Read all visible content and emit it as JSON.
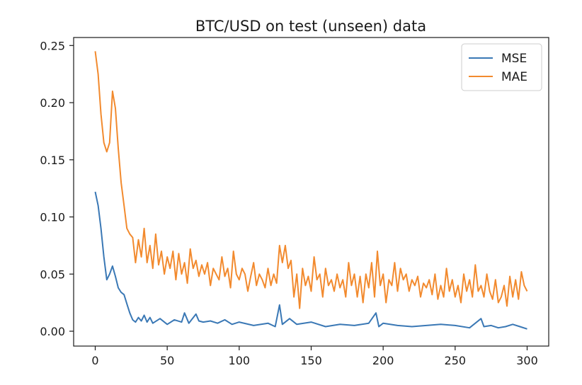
{
  "chart_data": {
    "type": "line",
    "title": "BTC/USD on test (unseen) data",
    "xlabel": "",
    "ylabel": "",
    "xlim": [
      -15,
      315
    ],
    "ylim": [
      -0.013,
      0.257
    ],
    "xticks": [
      0,
      50,
      100,
      150,
      200,
      250,
      300
    ],
    "xtick_labels": [
      "0",
      "50",
      "100",
      "150",
      "200",
      "250",
      "300"
    ],
    "yticks": [
      0.0,
      0.05,
      0.1,
      0.15,
      0.2,
      0.25
    ],
    "ytick_labels": [
      "0.00",
      "0.05",
      "0.10",
      "0.15",
      "0.20",
      "0.25"
    ],
    "grid": false,
    "legend_position": "upper-right",
    "series": [
      {
        "name": "MSE",
        "color": "#3a78b5",
        "x": [
          0,
          2,
          4,
          6,
          8,
          10,
          12,
          14,
          16,
          18,
          20,
          22,
          24,
          26,
          28,
          30,
          32,
          34,
          36,
          38,
          40,
          45,
          50,
          55,
          60,
          62,
          65,
          70,
          72,
          75,
          80,
          85,
          90,
          95,
          100,
          110,
          120,
          125,
          128,
          130,
          135,
          140,
          150,
          160,
          170,
          180,
          190,
          195,
          197,
          200,
          210,
          220,
          230,
          240,
          250,
          260,
          268,
          270,
          275,
          280,
          285,
          290,
          295,
          300
        ],
        "values": [
          0.122,
          0.11,
          0.09,
          0.065,
          0.045,
          0.05,
          0.057,
          0.048,
          0.038,
          0.034,
          0.032,
          0.024,
          0.016,
          0.01,
          0.008,
          0.012,
          0.009,
          0.014,
          0.008,
          0.012,
          0.007,
          0.011,
          0.006,
          0.01,
          0.008,
          0.016,
          0.007,
          0.015,
          0.009,
          0.008,
          0.009,
          0.007,
          0.01,
          0.006,
          0.008,
          0.005,
          0.007,
          0.004,
          0.023,
          0.006,
          0.011,
          0.006,
          0.008,
          0.004,
          0.006,
          0.005,
          0.007,
          0.016,
          0.004,
          0.007,
          0.005,
          0.004,
          0.005,
          0.006,
          0.005,
          0.003,
          0.011,
          0.004,
          0.005,
          0.003,
          0.004,
          0.006,
          0.004,
          0.002
        ]
      },
      {
        "name": "MAE",
        "color": "#f28a2e",
        "x": [
          0,
          2,
          4,
          6,
          8,
          10,
          12,
          14,
          16,
          18,
          20,
          22,
          24,
          26,
          28,
          30,
          32,
          34,
          36,
          38,
          40,
          42,
          44,
          46,
          48,
          50,
          52,
          54,
          56,
          58,
          60,
          62,
          64,
          66,
          68,
          70,
          72,
          74,
          76,
          78,
          80,
          82,
          84,
          86,
          88,
          90,
          92,
          94,
          96,
          98,
          100,
          102,
          104,
          106,
          108,
          110,
          112,
          114,
          116,
          118,
          120,
          122,
          124,
          126,
          128,
          130,
          132,
          134,
          136,
          138,
          140,
          142,
          144,
          146,
          148,
          150,
          152,
          154,
          156,
          158,
          160,
          162,
          164,
          166,
          168,
          170,
          172,
          174,
          176,
          178,
          180,
          182,
          184,
          186,
          188,
          190,
          192,
          194,
          196,
          198,
          200,
          202,
          204,
          206,
          208,
          210,
          212,
          214,
          216,
          218,
          220,
          222,
          224,
          226,
          228,
          230,
          232,
          234,
          236,
          238,
          240,
          242,
          244,
          246,
          248,
          250,
          252,
          254,
          256,
          258,
          260,
          262,
          264,
          266,
          268,
          270,
          272,
          274,
          276,
          278,
          280,
          282,
          284,
          286,
          288,
          290,
          292,
          294,
          296,
          298,
          300
        ],
        "values": [
          0.245,
          0.225,
          0.19,
          0.165,
          0.157,
          0.165,
          0.21,
          0.195,
          0.16,
          0.13,
          0.11,
          0.09,
          0.085,
          0.082,
          0.06,
          0.08,
          0.065,
          0.09,
          0.06,
          0.075,
          0.055,
          0.085,
          0.058,
          0.07,
          0.05,
          0.065,
          0.055,
          0.07,
          0.045,
          0.068,
          0.05,
          0.06,
          0.042,
          0.072,
          0.055,
          0.062,
          0.048,
          0.058,
          0.05,
          0.06,
          0.04,
          0.055,
          0.05,
          0.045,
          0.065,
          0.048,
          0.055,
          0.038,
          0.07,
          0.05,
          0.045,
          0.055,
          0.05,
          0.035,
          0.048,
          0.06,
          0.04,
          0.05,
          0.045,
          0.038,
          0.055,
          0.04,
          0.05,
          0.042,
          0.075,
          0.06,
          0.075,
          0.055,
          0.062,
          0.03,
          0.05,
          0.02,
          0.055,
          0.04,
          0.048,
          0.035,
          0.065,
          0.045,
          0.05,
          0.03,
          0.055,
          0.04,
          0.045,
          0.035,
          0.05,
          0.038,
          0.045,
          0.03,
          0.06,
          0.04,
          0.05,
          0.03,
          0.048,
          0.025,
          0.05,
          0.038,
          0.06,
          0.03,
          0.07,
          0.04,
          0.05,
          0.025,
          0.045,
          0.04,
          0.06,
          0.035,
          0.055,
          0.045,
          0.05,
          0.035,
          0.045,
          0.04,
          0.048,
          0.03,
          0.042,
          0.038,
          0.045,
          0.032,
          0.05,
          0.028,
          0.04,
          0.03,
          0.055,
          0.035,
          0.045,
          0.03,
          0.04,
          0.025,
          0.05,
          0.035,
          0.045,
          0.03,
          0.058,
          0.035,
          0.04,
          0.03,
          0.05,
          0.035,
          0.028,
          0.045,
          0.025,
          0.03,
          0.04,
          0.022,
          0.048,
          0.03,
          0.045,
          0.028,
          0.052,
          0.04,
          0.035
        ]
      }
    ]
  }
}
